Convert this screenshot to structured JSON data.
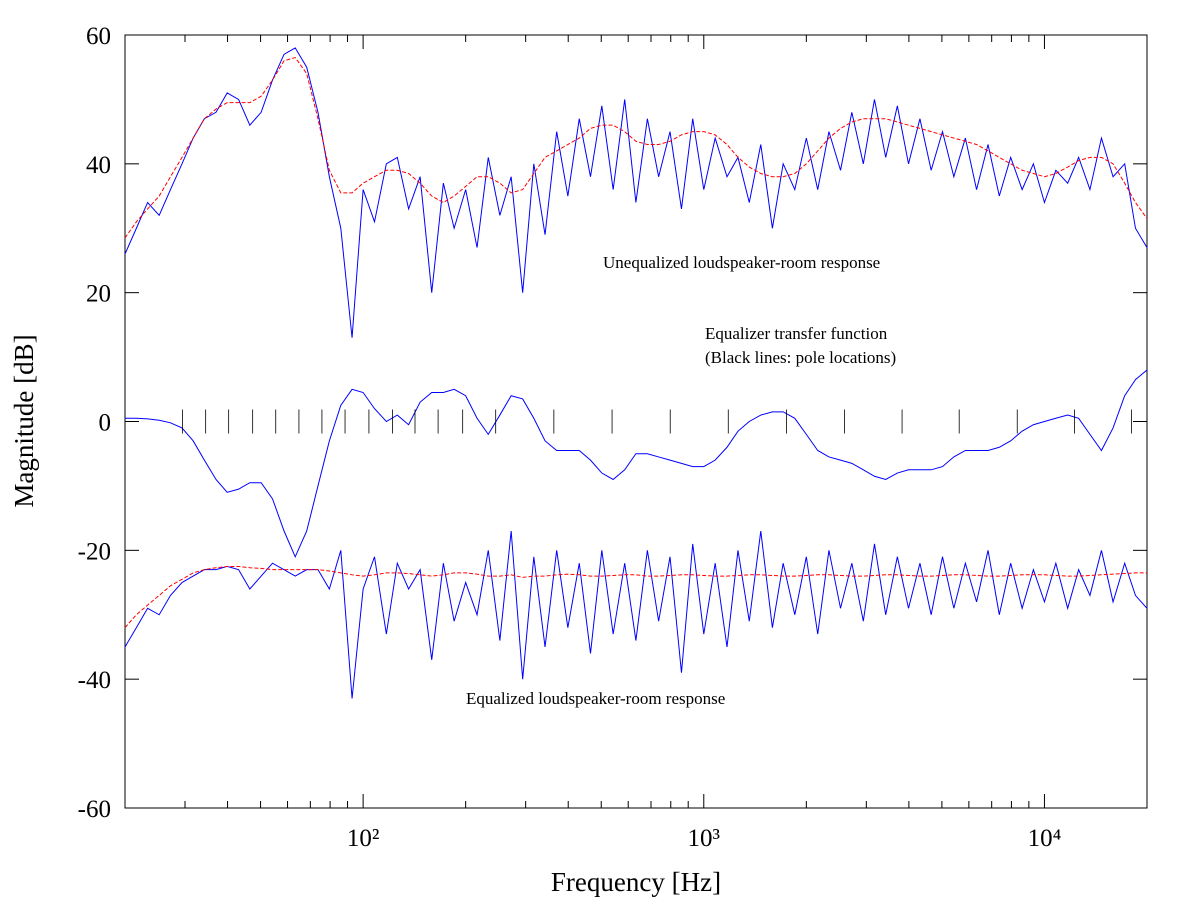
{
  "chart_data": {
    "type": "line",
    "xlabel": "Frequency [Hz]",
    "ylabel": "Magnitude [dB]",
    "log_x": true,
    "xlim": [
      20,
      20000
    ],
    "ylim": [
      -60,
      60
    ],
    "xticks": [
      {
        "value": 100,
        "label": "10²"
      },
      {
        "value": 1000,
        "label": "10³"
      },
      {
        "value": 10000,
        "label": "10⁴"
      }
    ],
    "xminor_ticks": [
      30,
      40,
      50,
      60,
      70,
      80,
      90,
      200,
      300,
      400,
      500,
      600,
      700,
      800,
      900,
      2000,
      3000,
      4000,
      5000,
      6000,
      7000,
      8000,
      9000
    ],
    "yticks": [
      -60,
      -40,
      -20,
      0,
      20,
      40,
      60
    ],
    "annotations": [
      "Unequalized loudspeaker-room response",
      "Equalizer transfer function",
      "(Black lines: pole locations)",
      "Equalized loudspeaker-room response"
    ],
    "pole_frequencies": [
      29.5,
      34.5,
      40.3,
      47.4,
      55.4,
      64.8,
      75.7,
      88.5,
      104,
      122,
      142,
      166,
      196,
      245,
      363,
      538,
      797,
      1180,
      1750,
      2590,
      3820,
      5620,
      8320,
      12250,
      18000
    ],
    "pole_color": "#000000",
    "x": [
      20,
      21.6,
      23.3,
      25.2,
      27.2,
      29.4,
      31.7,
      34.2,
      37,
      39.9,
      43.1,
      46.5,
      50.2,
      54.2,
      58.6,
      63.2,
      68.3,
      73.7,
      79.6,
      86,
      92.8,
      100,
      108,
      117,
      126,
      136,
      147,
      159,
      172,
      185,
      200,
      216,
      233,
      252,
      272,
      294,
      317,
      342,
      370,
      399,
      431,
      465,
      502,
      542,
      586,
      632,
      683,
      737,
      796,
      860,
      928,
      1000,
      1080,
      1170,
      1260,
      1360,
      1470,
      1590,
      1710,
      1850,
      2000,
      2160,
      2330,
      2520,
      2720,
      2940,
      3170,
      3420,
      3700,
      3990,
      4310,
      4650,
      5020,
      5420,
      5860,
      6320,
      6830,
      7370,
      7960,
      8600,
      9280,
      10000,
      10800,
      11700,
      12600,
      13600,
      14700,
      15900,
      17200,
      18500,
      20000
    ],
    "series": [
      {
        "color": "#0000ff",
        "dash": false,
        "values": [
          26,
          30,
          34,
          32,
          36,
          40,
          44,
          47,
          48,
          51,
          50,
          46,
          48,
          53,
          57,
          58,
          55,
          48,
          38,
          30,
          13,
          36,
          31,
          40,
          41,
          33,
          38,
          20,
          37,
          30,
          36,
          27,
          41,
          32,
          38,
          20,
          40,
          29,
          45,
          35,
          47,
          38,
          49,
          36,
          50,
          34,
          47,
          38,
          45,
          33,
          47,
          36,
          44,
          38,
          41,
          34,
          43,
          30,
          40,
          36,
          44,
          36,
          45,
          39,
          48,
          40,
          50,
          41,
          49,
          40,
          47,
          39,
          45,
          38,
          44,
          36,
          43,
          35,
          41,
          36,
          40,
          34,
          39,
          37,
          41,
          36,
          44,
          38,
          40,
          30,
          27
        ]
      },
      {
        "color": "#0000ff",
        "dash": false,
        "values": [
          0.5,
          0.5,
          0.4,
          0.2,
          -0.2,
          -1,
          -3,
          -6,
          -9,
          -11,
          -10.5,
          -9.5,
          -9.5,
          -12,
          -17,
          -21,
          -17,
          -10,
          -3,
          2.5,
          5,
          4.5,
          2,
          0,
          1,
          -0.5,
          3,
          4.5,
          4.5,
          5,
          4,
          0.5,
          -2,
          1,
          4,
          3.5,
          0.5,
          -3,
          -4.5,
          -4.5,
          -4.5,
          -6,
          -8,
          -9,
          -7.5,
          -5,
          -5,
          -5.5,
          -6,
          -6.5,
          -7,
          -7,
          -6,
          -4,
          -1.5,
          0,
          1,
          1.5,
          1.5,
          0.5,
          -2,
          -4.5,
          -5.5,
          -6,
          -6.5,
          -7.5,
          -8.5,
          -9,
          -8,
          -7.5,
          -7.5,
          -7.5,
          -7,
          -5.5,
          -4.5,
          -4.5,
          -4.5,
          -4,
          -3,
          -1.5,
          -0.5,
          0,
          0.5,
          1,
          0.5,
          -2,
          -4.5,
          -1,
          4,
          6.5,
          8
        ]
      },
      {
        "color": "#0000ff",
        "dash": false,
        "values": [
          -35,
          -32,
          -29,
          -30,
          -27,
          -25,
          -24,
          -23,
          -23,
          -22.5,
          -23,
          -26,
          -24,
          -22,
          -23,
          -24,
          -23,
          -23,
          -26,
          -20,
          -43,
          -26,
          -21,
          -33,
          -22,
          -26,
          -23,
          -37,
          -22,
          -31,
          -25,
          -30,
          -20,
          -34,
          -17,
          -40,
          -21,
          -35,
          -20,
          -32,
          -22,
          -36,
          -20,
          -33,
          -22,
          -34,
          -20,
          -31,
          -21,
          -39,
          -19,
          -33,
          -22,
          -35,
          -20,
          -31,
          -17,
          -32,
          -22,
          -30,
          -21,
          -33,
          -20,
          -29,
          -22,
          -31,
          -19,
          -30,
          -21,
          -29,
          -22,
          -30,
          -21,
          -29,
          -22,
          -28,
          -20,
          -30,
          -22,
          -29,
          -23,
          -28,
          -22,
          -29,
          -23,
          -27,
          -20,
          -28,
          -22,
          -27,
          -29
        ]
      },
      {
        "color": "#ff0000",
        "dash": true,
        "values": [
          28.5,
          31,
          33,
          35,
          38,
          41,
          44,
          47,
          48.5,
          49.5,
          49.5,
          49.5,
          50.5,
          53,
          56,
          56.5,
          54,
          47,
          39,
          35.5,
          35.5,
          37,
          38,
          39,
          39,
          38.5,
          37,
          35,
          34,
          35,
          36.5,
          38,
          38,
          37,
          35.5,
          36,
          38.5,
          41,
          42,
          43,
          44,
          45.5,
          46,
          46,
          45,
          43.5,
          43,
          43,
          43.5,
          44.5,
          45,
          45,
          44.5,
          43,
          41,
          39.5,
          38.5,
          38,
          38,
          38.5,
          40,
          42,
          44,
          45.5,
          46.5,
          47,
          47,
          47,
          46.5,
          46,
          45.5,
          45,
          44.5,
          44,
          43.5,
          43,
          42,
          41,
          40,
          39,
          38.5,
          38,
          38.5,
          39.5,
          40.5,
          41,
          41,
          40,
          37,
          34,
          31.5
        ]
      },
      {
        "color": "#ff0000",
        "dash": true,
        "values": [
          -32,
          -30,
          -28.5,
          -27,
          -25.5,
          -24.5,
          -23.5,
          -23,
          -22.7,
          -22.5,
          -22.5,
          -22.7,
          -22.8,
          -23,
          -23,
          -23,
          -23,
          -23,
          -23.2,
          -23.5,
          -23.8,
          -24,
          -23.8,
          -23.5,
          -23.5,
          -23.6,
          -23.8,
          -24,
          -23.8,
          -23.5,
          -23.5,
          -23.7,
          -24,
          -24,
          -23.8,
          -24.2,
          -24,
          -24,
          -23.8,
          -23.7,
          -23.8,
          -24,
          -24,
          -23.9,
          -23.8,
          -23.8,
          -24,
          -24,
          -23.9,
          -23.8,
          -23.8,
          -23.9,
          -24,
          -24,
          -23.9,
          -23.8,
          -23.8,
          -23.9,
          -24,
          -24,
          -23.9,
          -23.8,
          -23.8,
          -23.9,
          -24,
          -24,
          -23.9,
          -23.8,
          -23.8,
          -23.9,
          -24,
          -24,
          -23.9,
          -23.8,
          -23.8,
          -23.9,
          -24,
          -24,
          -23.9,
          -23.8,
          -23.8,
          -23.8,
          -23.9,
          -24,
          -24,
          -23.9,
          -23.8,
          -23.7,
          -23.6,
          -23.5,
          -23.5
        ]
      }
    ]
  }
}
